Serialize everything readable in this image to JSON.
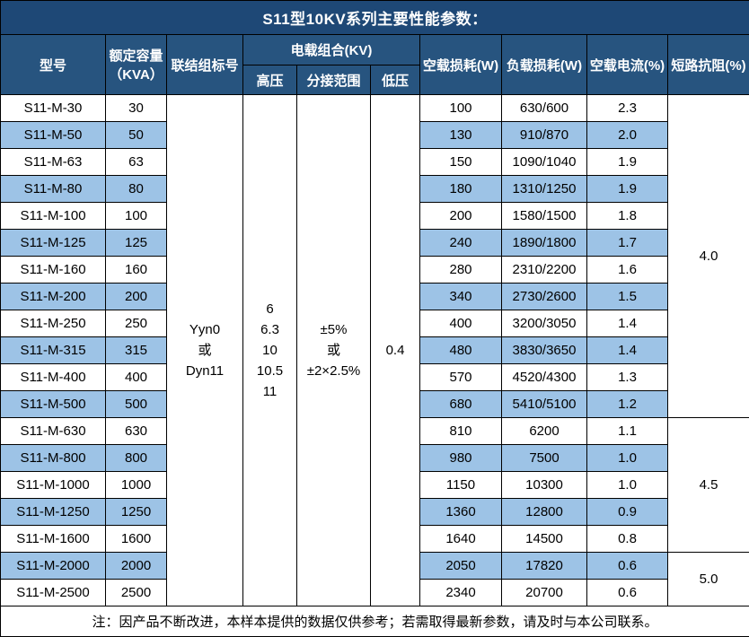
{
  "title": "S11型10KV系列主要性能参数：",
  "header": {
    "model": "型号",
    "capacity_line1": "额定容量",
    "capacity_line2": "（KVA）",
    "connection": "联结组标号",
    "voltage_group": "电载组合(KV)",
    "hv": "高压",
    "tap_range": "分接范围",
    "lv": "低压",
    "no_load_loss": "空载损耗(W)",
    "load_loss": "负载损耗(W)",
    "no_load_current": "空载电流(%)",
    "impedance": "短路抗阻(%)"
  },
  "merged_cells": {
    "connection_lines": [
      "Yyn0",
      "或",
      "Dyn11"
    ],
    "hv_lines": [
      "6",
      "6.3",
      "10",
      "10.5",
      "11"
    ],
    "tap_lines": [
      "±5%",
      "或",
      "±2×2.5%"
    ],
    "lv_value": "0.4"
  },
  "rows": [
    {
      "model": "S11-M-30",
      "capacity": "30",
      "no_load_loss": "100",
      "load_loss": "630/600",
      "no_load_current": "2.3"
    },
    {
      "model": "S11-M-50",
      "capacity": "50",
      "no_load_loss": "130",
      "load_loss": "910/870",
      "no_load_current": "2.0"
    },
    {
      "model": "S11-M-63",
      "capacity": "63",
      "no_load_loss": "150",
      "load_loss": "1090/1040",
      "no_load_current": "1.9"
    },
    {
      "model": "S11-M-80",
      "capacity": "80",
      "no_load_loss": "180",
      "load_loss": "1310/1250",
      "no_load_current": "1.9"
    },
    {
      "model": "S11-M-100",
      "capacity": "100",
      "no_load_loss": "200",
      "load_loss": "1580/1500",
      "no_load_current": "1.8"
    },
    {
      "model": "S11-M-125",
      "capacity": "125",
      "no_load_loss": "240",
      "load_loss": "1890/1800",
      "no_load_current": "1.7"
    },
    {
      "model": "S11-M-160",
      "capacity": "160",
      "no_load_loss": "280",
      "load_loss": "2310/2200",
      "no_load_current": "1.6"
    },
    {
      "model": "S11-M-200",
      "capacity": "200",
      "no_load_loss": "340",
      "load_loss": "2730/2600",
      "no_load_current": "1.5"
    },
    {
      "model": "S11-M-250",
      "capacity": "250",
      "no_load_loss": "400",
      "load_loss": "3200/3050",
      "no_load_current": "1.4"
    },
    {
      "model": "S11-M-315",
      "capacity": "315",
      "no_load_loss": "480",
      "load_loss": "3830/3650",
      "no_load_current": "1.4"
    },
    {
      "model": "S11-M-400",
      "capacity": "400",
      "no_load_loss": "570",
      "load_loss": "4520/4300",
      "no_load_current": "1.3"
    },
    {
      "model": "S11-M-500",
      "capacity": "500",
      "no_load_loss": "680",
      "load_loss": "5410/5100",
      "no_load_current": "1.2"
    },
    {
      "model": "S11-M-630",
      "capacity": "630",
      "no_load_loss": "810",
      "load_loss": "6200",
      "no_load_current": "1.1"
    },
    {
      "model": "S11-M-800",
      "capacity": "800",
      "no_load_loss": "980",
      "load_loss": "7500",
      "no_load_current": "1.0"
    },
    {
      "model": "S11-M-1000",
      "capacity": "1000",
      "no_load_loss": "1150",
      "load_loss": "10300",
      "no_load_current": "1.0"
    },
    {
      "model": "S11-M-1250",
      "capacity": "1250",
      "no_load_loss": "1360",
      "load_loss": "12800",
      "no_load_current": "0.9"
    },
    {
      "model": "S11-M-1600",
      "capacity": "1600",
      "no_load_loss": "1640",
      "load_loss": "14500",
      "no_load_current": "0.8"
    },
    {
      "model": "S11-M-2000",
      "capacity": "2000",
      "no_load_loss": "2050",
      "load_loss": "17820",
      "no_load_current": "0.6"
    },
    {
      "model": "S11-M-2500",
      "capacity": "2500",
      "no_load_loss": "2340",
      "load_loss": "20700",
      "no_load_current": "0.6"
    }
  ],
  "impedance_groups": [
    {
      "value": "4.0",
      "rowspan": 12
    },
    {
      "value": "4.5",
      "rowspan": 5
    },
    {
      "value": "5.0",
      "rowspan": 2
    }
  ],
  "note": "注：因产品不断改进，本样本提供的数据仅供参考；若需取得最新参数，请及时与本公司联系。",
  "colors": {
    "title_bg": "#1E4876",
    "header_bg": "#27547F",
    "row_alt_bg": "#9DC3E6",
    "row_bg": "#FFFFFF",
    "border": "#000000",
    "header_text": "#FFFFFF",
    "body_text": "#000000"
  }
}
